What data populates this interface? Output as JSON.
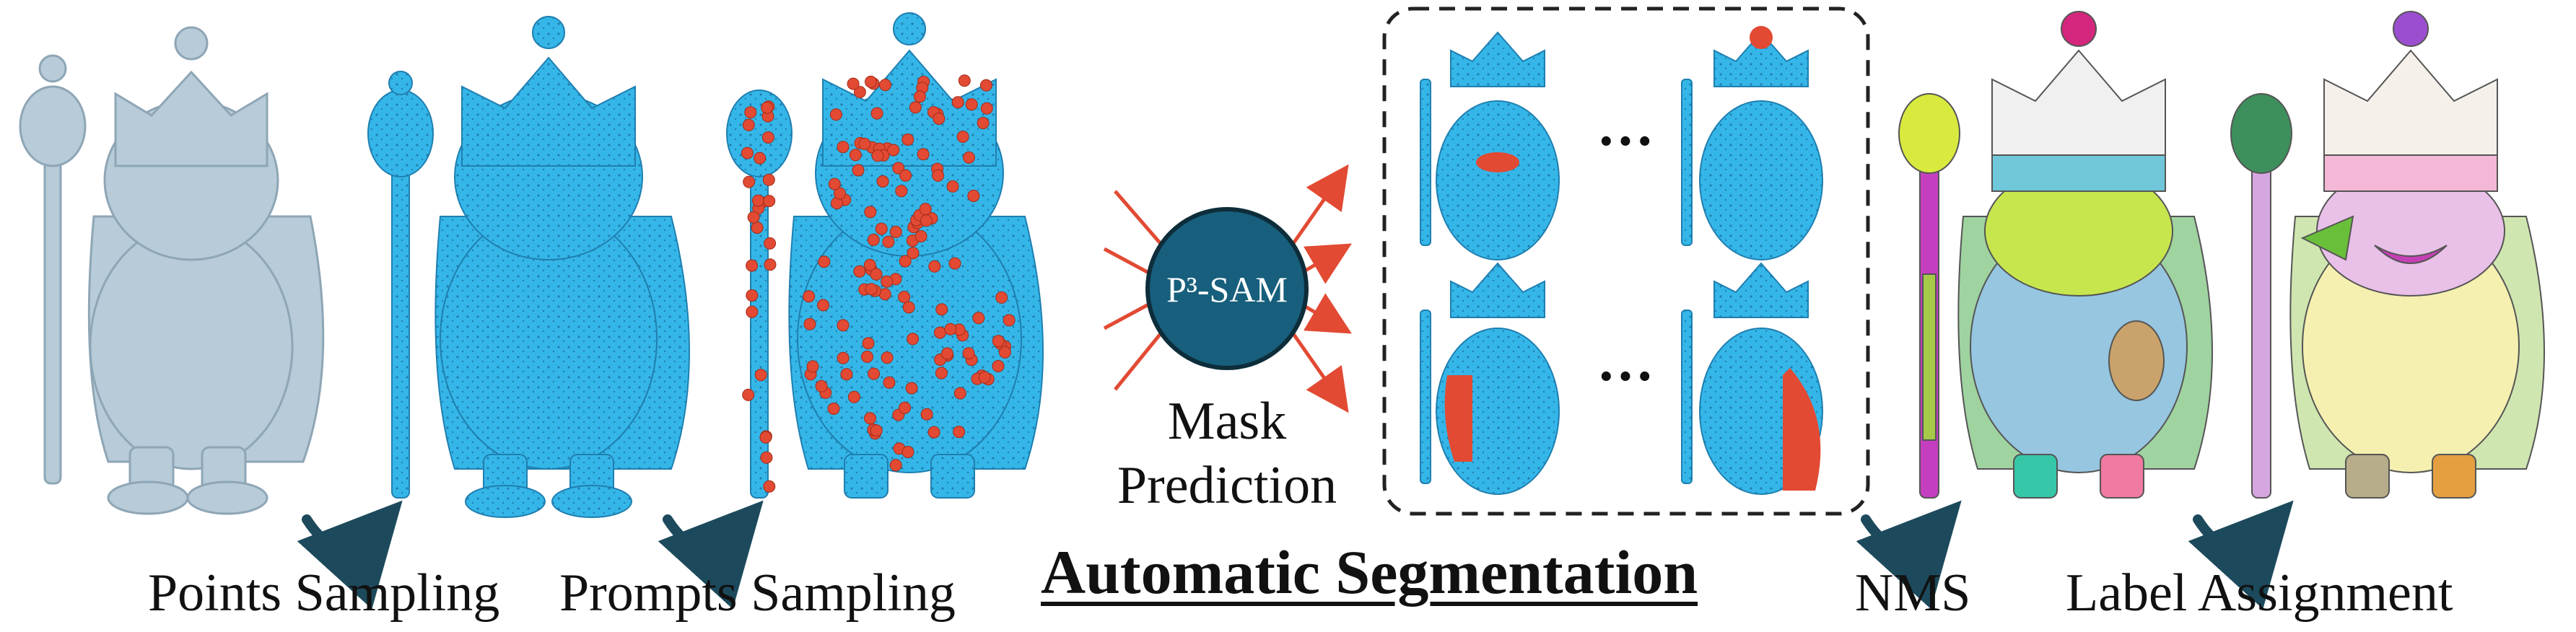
{
  "title": "Automatic Segmentation",
  "labels": {
    "points_sampling": "Points Sampling",
    "prompts_sampling": "Prompts Sampling",
    "nms": "NMS",
    "label_assignment": "Label Assignment",
    "mask_prediction_line1": "Mask",
    "mask_prediction_line2": "Prediction"
  },
  "model": "P³-SAM",
  "ellipsis": "···",
  "colors": {
    "mesh_gray": "#b7cbd8",
    "point_blue": "#35b6e8",
    "prompt_red": "#e24a33",
    "model_circle": "#175f7c",
    "arrow_dark": "#1c4a5c",
    "panel_border": "#222222"
  }
}
